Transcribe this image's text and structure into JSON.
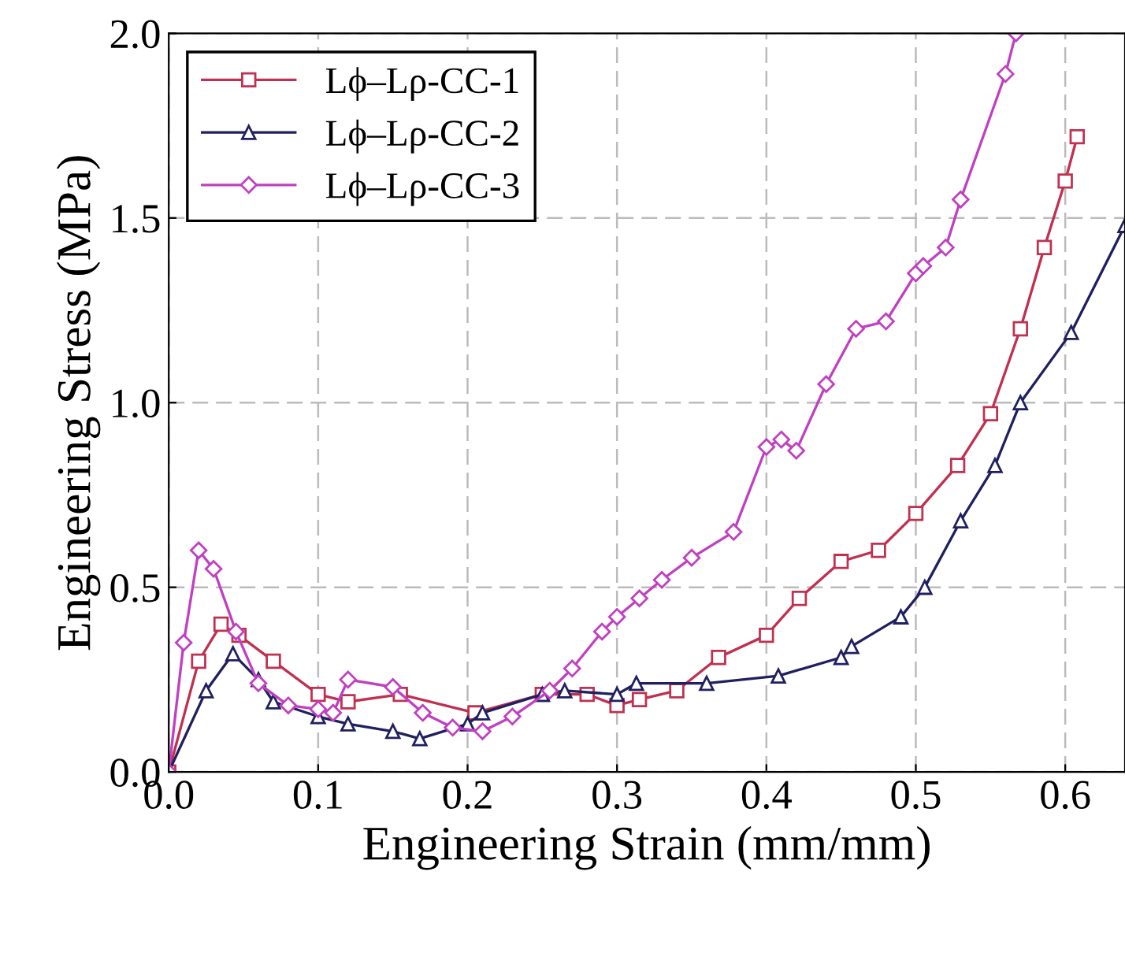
{
  "chart_data": {
    "type": "line",
    "xlabel": "Engineering Strain (mm/mm)",
    "ylabel": "Engineering Stress (MPa)",
    "xlim": [
      0,
      0.64
    ],
    "ylim": [
      0,
      2.0
    ],
    "xticks": [
      {
        "value": 0,
        "label": "0.0"
      },
      0.1,
      0.2,
      0.3,
      0.4,
      0.5,
      0.6
    ],
    "yticks": [
      {
        "value": 0,
        "label": "0.0"
      },
      0.5,
      {
        "value": 1,
        "label": "1.0"
      },
      1.5,
      {
        "value": 2,
        "label": "2.0"
      }
    ],
    "grid": true,
    "legend": "top left",
    "line_style": "solid",
    "series": [
      {
        "name": "Lϕ–Lρ-CC-1",
        "color": "#c03050",
        "marker": "square",
        "x": [
          0,
          0.02,
          0.035,
          0.047,
          0.07,
          0.1,
          0.12,
          0.155,
          0.205,
          0.25,
          0.28,
          0.3,
          0.315,
          0.34,
          0.368,
          0.4,
          0.422,
          0.45,
          0.475,
          0.5,
          0.528,
          0.55,
          0.57,
          0.586,
          0.6,
          0.608
        ],
        "values": [
          0,
          0.3,
          0.4,
          0.37,
          0.3,
          0.21,
          0.19,
          0.21,
          0.16,
          0.21,
          0.21,
          0.18,
          0.196,
          0.22,
          0.31,
          0.37,
          0.47,
          0.57,
          0.6,
          0.7,
          0.83,
          0.97,
          1.2,
          1.42,
          1.6,
          1.72
        ]
      },
      {
        "name": "Lϕ–Lρ-CC-2",
        "color": "#202060",
        "marker": "triangle",
        "x": [
          0,
          0.025,
          0.043,
          0.06,
          0.07,
          0.1,
          0.12,
          0.15,
          0.168,
          0.2,
          0.21,
          0.25,
          0.265,
          0.3,
          0.313,
          0.36,
          0.408,
          0.45,
          0.457,
          0.49,
          0.506,
          0.53,
          0.553,
          0.57,
          0.604,
          0.64
        ],
        "values": [
          0,
          0.22,
          0.32,
          0.25,
          0.19,
          0.15,
          0.13,
          0.11,
          0.09,
          0.13,
          0.16,
          0.21,
          0.22,
          0.21,
          0.24,
          0.24,
          0.26,
          0.31,
          0.34,
          0.42,
          0.5,
          0.68,
          0.83,
          1.0,
          1.19,
          1.48
        ]
      },
      {
        "name": "Lϕ–Lρ-CC-3",
        "color": "#c040c0",
        "marker": "diamond",
        "x": [
          0,
          0.01,
          0.02,
          0.03,
          0.045,
          0.06,
          0.08,
          0.1,
          0.11,
          0.12,
          0.15,
          0.17,
          0.19,
          0.21,
          0.23,
          0.255,
          0.27,
          0.29,
          0.3,
          0.315,
          0.33,
          0.35,
          0.378,
          0.4,
          0.41,
          0.42,
          0.44,
          0.46,
          0.48,
          0.5,
          0.505,
          0.52,
          0.53,
          0.56,
          0.567
        ],
        "values": [
          0,
          0.35,
          0.6,
          0.55,
          0.38,
          0.24,
          0.18,
          0.17,
          0.16,
          0.25,
          0.23,
          0.16,
          0.12,
          0.11,
          0.15,
          0.22,
          0.28,
          0.38,
          0.42,
          0.47,
          0.52,
          0.58,
          0.65,
          0.88,
          0.9,
          0.87,
          1.05,
          1.2,
          1.22,
          1.35,
          1.37,
          1.42,
          1.55,
          1.89,
          2.0
        ]
      }
    ]
  }
}
